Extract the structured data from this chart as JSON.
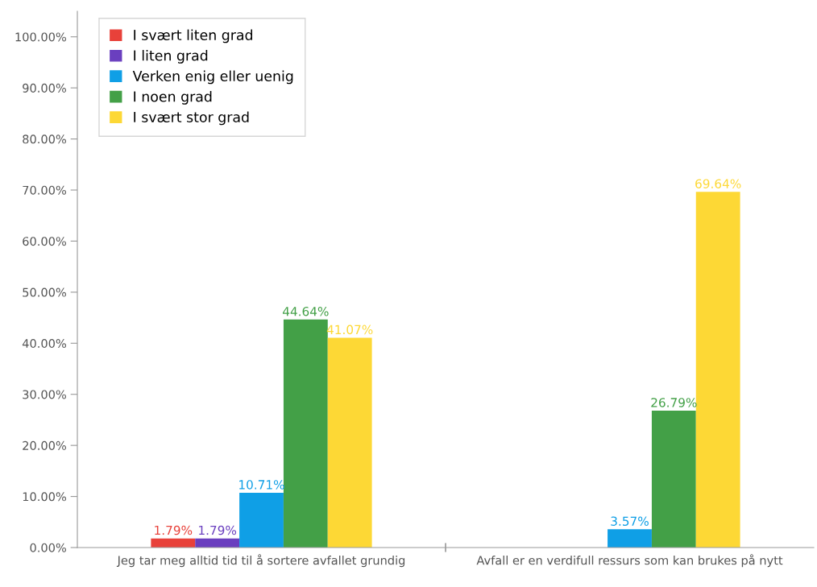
{
  "chart_data": {
    "type": "bar",
    "categories": [
      "Jeg tar meg alltid tid til å sortere avfallet grundig",
      "Avfall er en verdifull ressurs som kan brukes på nytt"
    ],
    "series": [
      {
        "name": "I svært liten grad",
        "color": "#e8413a",
        "values": [
          1.79,
          null
        ],
        "value_labels": [
          "1.79%",
          null
        ]
      },
      {
        "name": "I liten grad",
        "color": "#6a3fbf",
        "values": [
          1.79,
          null
        ],
        "value_labels": [
          "1.79%",
          null
        ]
      },
      {
        "name": "Verken enig eller uenig",
        "color": "#0f9fe6",
        "values": [
          10.71,
          3.57
        ],
        "value_labels": [
          "10.71%",
          "3.57%"
        ]
      },
      {
        "name": "I noen grad",
        "color": "#43a047",
        "values": [
          44.64,
          26.79
        ],
        "value_labels": [
          "44.64%",
          "26.79%"
        ]
      },
      {
        "name": "I svært stor grad",
        "color": "#fdd835",
        "values": [
          41.07,
          69.64
        ],
        "value_labels": [
          "41.07%",
          "69.64%"
        ]
      }
    ],
    "ylim": [
      0,
      105
    ],
    "yticks": [
      {
        "value": 0,
        "label": "0.00%"
      },
      {
        "value": 10,
        "label": "10.00%"
      },
      {
        "value": 20,
        "label": "20.00%"
      },
      {
        "value": 30,
        "label": "30.00%"
      },
      {
        "value": 40,
        "label": "40.00%"
      },
      {
        "value": 50,
        "label": "50.00%"
      },
      {
        "value": 60,
        "label": "60.00%"
      },
      {
        "value": 70,
        "label": "70.00%"
      },
      {
        "value": 80,
        "label": "80.00%"
      },
      {
        "value": 90,
        "label": "90.00%"
      },
      {
        "value": 100,
        "label": "100.00%"
      }
    ],
    "legend": "top left",
    "grid": false
  }
}
